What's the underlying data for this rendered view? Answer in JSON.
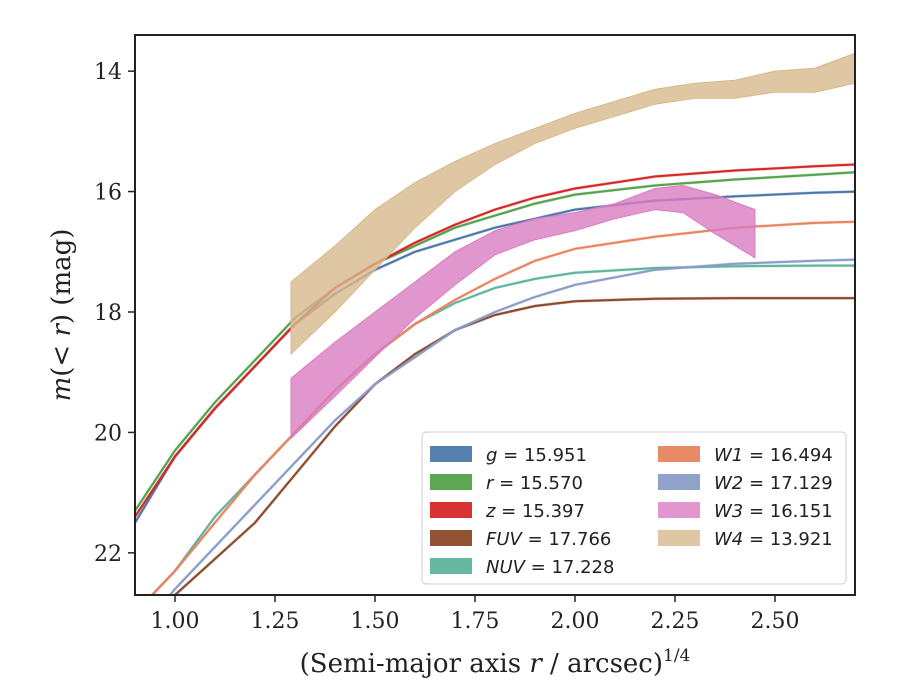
{
  "chart_data": {
    "type": "line",
    "title": "",
    "xlabel": "(Semi-major axis r / arcsec)^{1/4}",
    "xlabel_parts": {
      "pre": "(Semi-major axis ",
      "var": "r",
      "post": " / arcsec)",
      "sup": "1/4"
    },
    "ylabel": "m(< r) (mag)",
    "ylabel_parts": {
      "m": "m",
      "open": "(",
      "lt": "< ",
      "r": "r",
      "close": ")",
      "unit": " (mag)"
    },
    "xlim": [
      0.9,
      2.7
    ],
    "ylim": [
      22.7,
      13.4
    ],
    "y_inverted": true,
    "grid": false,
    "legend_position": "lower-right",
    "xticks": [
      "1.00",
      "1.25",
      "1.50",
      "1.75",
      "2.00",
      "2.25",
      "2.50"
    ],
    "yticks": [
      "14",
      "16",
      "18",
      "20",
      "22"
    ],
    "series": [
      {
        "name": "g",
        "value": "15.951",
        "legend_label": "g = 15.951",
        "color": "#4c78a8",
        "style": "line",
        "x": [
          0.9,
          1.0,
          1.1,
          1.2,
          1.3,
          1.4,
          1.5,
          1.6,
          1.7,
          1.8,
          1.9,
          2.0,
          2.2,
          2.4,
          2.6,
          2.7
        ],
        "y": [
          21.5,
          20.4,
          19.6,
          18.9,
          18.2,
          17.7,
          17.3,
          17.0,
          16.8,
          16.6,
          16.45,
          16.3,
          16.15,
          16.08,
          16.02,
          16.0
        ]
      },
      {
        "name": "r",
        "value": "15.570",
        "legend_label": "r = 15.570",
        "color": "#54a24b",
        "style": "line",
        "x": [
          0.9,
          1.0,
          1.1,
          1.2,
          1.3,
          1.4,
          1.5,
          1.6,
          1.7,
          1.8,
          1.9,
          2.0,
          2.2,
          2.4,
          2.6,
          2.7
        ],
        "y": [
          21.3,
          20.3,
          19.5,
          18.8,
          18.1,
          17.6,
          17.2,
          16.9,
          16.6,
          16.4,
          16.2,
          16.05,
          15.9,
          15.8,
          15.72,
          15.68
        ]
      },
      {
        "name": "z",
        "value": "15.397",
        "legend_label": "z = 15.397",
        "color": "#d62728",
        "style": "line",
        "x": [
          0.9,
          1.0,
          1.1,
          1.2,
          1.3,
          1.4,
          1.5,
          1.6,
          1.7,
          1.8,
          1.9,
          2.0,
          2.2,
          2.4,
          2.6,
          2.7
        ],
        "y": [
          21.4,
          20.4,
          19.6,
          18.9,
          18.2,
          17.6,
          17.2,
          16.85,
          16.55,
          16.3,
          16.1,
          15.95,
          15.75,
          15.65,
          15.58,
          15.55
        ]
      },
      {
        "name": "FUV",
        "value": "17.766",
        "legend_label": "FUV = 17.766",
        "color": "#8c4a2a",
        "style": "line",
        "x": [
          0.95,
          1.0,
          1.1,
          1.2,
          1.3,
          1.4,
          1.5,
          1.6,
          1.7,
          1.8,
          1.9,
          2.0,
          2.2,
          2.4,
          2.6,
          2.7
        ],
        "y": [
          23.0,
          22.7,
          22.1,
          21.5,
          20.7,
          19.9,
          19.2,
          18.7,
          18.3,
          18.05,
          17.9,
          17.82,
          17.78,
          17.77,
          17.77,
          17.77
        ]
      },
      {
        "name": "NUV",
        "value": "17.228",
        "legend_label": "NUV = 17.228",
        "color": "#5fb49c",
        "style": "line",
        "x": [
          0.9,
          1.0,
          1.1,
          1.2,
          1.3,
          1.4,
          1.5,
          1.6,
          1.7,
          1.8,
          1.9,
          2.0,
          2.2,
          2.4,
          2.6,
          2.7
        ],
        "y": [
          23.0,
          22.3,
          21.4,
          20.7,
          20.0,
          19.3,
          18.7,
          18.2,
          17.85,
          17.6,
          17.45,
          17.35,
          17.27,
          17.24,
          17.23,
          17.23
        ]
      },
      {
        "name": "W1",
        "value": "16.494",
        "legend_label": "W1 = 16.494",
        "color": "#e8845e",
        "style": "line",
        "x": [
          0.9,
          1.0,
          1.1,
          1.2,
          1.3,
          1.4,
          1.5,
          1.6,
          1.7,
          1.8,
          1.9,
          2.0,
          2.2,
          2.4,
          2.6,
          2.7
        ],
        "y": [
          23.0,
          22.3,
          21.5,
          20.7,
          20.0,
          19.3,
          18.7,
          18.2,
          17.8,
          17.45,
          17.15,
          16.95,
          16.75,
          16.6,
          16.52,
          16.5
        ]
      },
      {
        "name": "W2",
        "value": "17.129",
        "legend_label": "W2 = 17.129",
        "color": "#8a9cc8",
        "style": "line",
        "x": [
          0.95,
          1.0,
          1.1,
          1.2,
          1.3,
          1.4,
          1.5,
          1.6,
          1.7,
          1.8,
          1.9,
          2.0,
          2.2,
          2.4,
          2.6,
          2.7
        ],
        "y": [
          23.0,
          22.6,
          21.9,
          21.2,
          20.5,
          19.8,
          19.2,
          18.75,
          18.3,
          18.0,
          17.75,
          17.55,
          17.3,
          17.2,
          17.15,
          17.13
        ]
      },
      {
        "name": "W3",
        "value": "16.151",
        "legend_label": "W3 = 16.151",
        "color": "#d97cc2",
        "style": "band",
        "x": [
          1.29,
          1.4,
          1.5,
          1.6,
          1.7,
          1.8,
          1.9,
          2.0,
          2.1,
          2.2,
          2.27,
          2.35,
          2.45
        ],
        "y_low": [
          19.1,
          18.5,
          18.0,
          17.5,
          17.0,
          16.65,
          16.45,
          16.35,
          16.2,
          15.95,
          15.9,
          16.05,
          16.3
        ],
        "y_high": [
          20.1,
          19.4,
          18.75,
          18.1,
          17.55,
          17.05,
          16.8,
          16.65,
          16.45,
          16.3,
          16.35,
          16.7,
          17.1
        ]
      },
      {
        "name": "W4",
        "value": "13.921",
        "legend_label": "W4 = 13.921",
        "color": "#d8b98c",
        "style": "band",
        "x": [
          1.29,
          1.4,
          1.5,
          1.6,
          1.7,
          1.8,
          1.9,
          2.0,
          2.1,
          2.2,
          2.3,
          2.4,
          2.5,
          2.6,
          2.7
        ],
        "y_low": [
          17.5,
          16.9,
          16.3,
          15.85,
          15.5,
          15.2,
          14.95,
          14.7,
          14.5,
          14.3,
          14.2,
          14.15,
          14.0,
          13.95,
          13.7
        ],
        "y_high": [
          18.7,
          18.0,
          17.3,
          16.6,
          16.0,
          15.55,
          15.2,
          14.95,
          14.75,
          14.55,
          14.45,
          14.45,
          14.35,
          14.35,
          14.2
        ]
      }
    ]
  }
}
